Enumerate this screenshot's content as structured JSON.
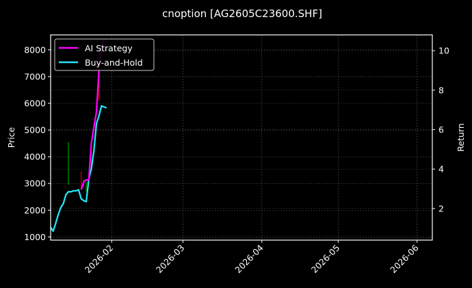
{
  "chart_data": {
    "type": "line",
    "title": "cnoption [AG2605C23600.SHF]",
    "xlabel": "",
    "ylabel": "Price",
    "ylabel_right": "Return",
    "x_ticks": [
      "2026-02",
      "2026-03",
      "2026-04",
      "2026-05",
      "2026-06"
    ],
    "y_ticks_left": [
      1000,
      2000,
      3000,
      4000,
      5000,
      6000,
      7000,
      8000
    ],
    "y_ticks_right": [
      2,
      4,
      6,
      8,
      10
    ],
    "ylim_left": [
      880,
      8560
    ],
    "ylim_right": [
      0.4,
      10.8
    ],
    "xlim": [
      "2026-01-08",
      "2026-06-07"
    ],
    "grid": true,
    "legend_position": "upper left",
    "legend": [
      {
        "label": "AI Strategy",
        "color": "#ff00ff"
      },
      {
        "label": "Buy-and-Hold",
        "color": "#22e5f5"
      }
    ],
    "series": [
      {
        "name": "AI Strategy",
        "axis": "right",
        "color": "#ff00ff",
        "x": [
          "2026-01-20",
          "2026-01-21",
          "2026-01-22",
          "2026-01-23",
          "2026-01-24",
          "2026-01-25",
          "2026-01-26",
          "2026-01-27",
          "2026-01-28",
          "2026-01-29"
        ],
        "values": [
          2.95,
          3.35,
          3.45,
          3.45,
          5.3,
          6.1,
          6.9,
          9.0,
          10.2,
          10.6
        ]
      },
      {
        "name": "Buy-and-Hold",
        "axis": "right",
        "color": "#22e5f5",
        "x": [
          "2026-01-08",
          "2026-01-09",
          "2026-01-10",
          "2026-01-11",
          "2026-01-12",
          "2026-01-13",
          "2026-01-14",
          "2026-01-15",
          "2026-01-16",
          "2026-01-17",
          "2026-01-18",
          "2026-01-19",
          "2026-01-20",
          "2026-01-21",
          "2026-01-22",
          "2026-01-23",
          "2026-01-24",
          "2026-01-25",
          "2026-01-26",
          "2026-01-27",
          "2026-01-28",
          "2026-01-29",
          "2026-01-30"
        ],
        "values": [
          1.05,
          0.85,
          1.25,
          1.7,
          2.05,
          2.25,
          2.7,
          2.85,
          2.85,
          2.9,
          2.9,
          2.95,
          2.5,
          2.4,
          2.35,
          3.5,
          4.0,
          4.9,
          6.3,
          6.7,
          7.2,
          7.15,
          7.1
        ]
      }
    ],
    "candles": {
      "axis": "left",
      "up_color": "#00a000",
      "down_color": "#e00000",
      "items": [
        {
          "x": "2026-01-15",
          "low": 2950,
          "high": 4550,
          "dir": "up"
        },
        {
          "x": "2026-01-20",
          "low": 2800,
          "high": 3450,
          "dir": "down"
        },
        {
          "x": "2026-01-21",
          "low": 2900,
          "high": 3150,
          "dir": "up"
        },
        {
          "x": "2026-01-22",
          "low": 2700,
          "high": 3050,
          "dir": "up"
        },
        {
          "x": "2026-01-24",
          "low": 3500,
          "high": 4500,
          "dir": "down"
        },
        {
          "x": "2026-01-27",
          "low": 6100,
          "high": 7500,
          "dir": "down"
        },
        {
          "x": "2026-01-29",
          "low": 7800,
          "high": 8100,
          "dir": "down"
        }
      ]
    }
  }
}
